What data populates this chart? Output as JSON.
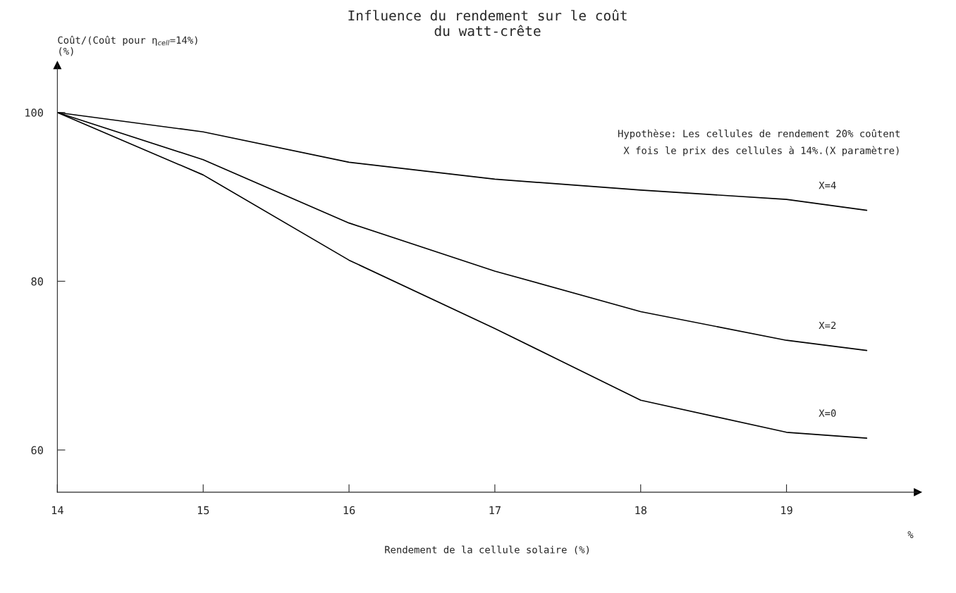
{
  "chart_data": {
    "type": "line",
    "title": "Influence du rendement sur le coût\ndu watt-crête",
    "xlabel": "Rendement de la cellule solaire (%)",
    "ylabel": "Coût/(Coût pour η$_{cell}$=14%)\n(%)",
    "x": [
      14,
      15,
      16,
      17,
      18,
      19,
      19.55
    ],
    "series": [
      {
        "name": "X=4",
        "color": "#000000",
        "values": [
          100,
          97.7,
          94.1,
          92.1,
          90.8,
          89.7,
          88.4
        ]
      },
      {
        "name": "X=2",
        "color": "#000000",
        "values": [
          100,
          94.4,
          86.9,
          81.2,
          76.4,
          73.0,
          71.8
        ]
      },
      {
        "name": "X=0",
        "color": "#000000",
        "values": [
          100,
          92.6,
          82.5,
          74.4,
          65.9,
          62.1,
          61.4
        ]
      }
    ],
    "xlim": [
      14,
      19.9
    ],
    "ylim": [
      55,
      105.6
    ],
    "xticks": [
      14,
      15,
      16,
      17,
      18,
      19
    ],
    "yticks": [
      60,
      80,
      100
    ],
    "annotations": [
      "Hypothèse: Les cellules de rendement 20% coûtent\nX fois le prix des cellules à 14%.(X paramètre)",
      "%"
    ],
    "grid": false,
    "legend": false,
    "marker": "none",
    "line_style": "solid"
  }
}
